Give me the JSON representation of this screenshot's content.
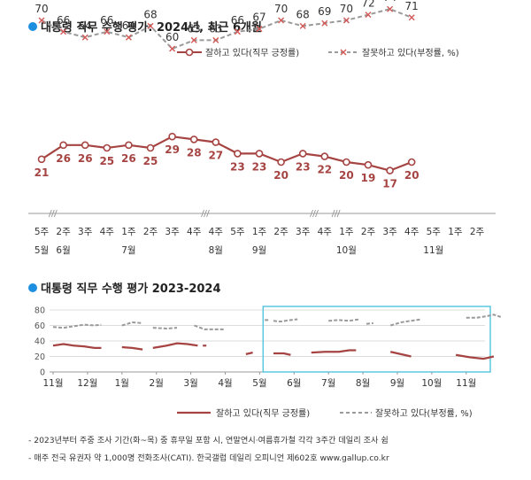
{
  "colors": {
    "approve": "#a54442",
    "disapprove": "#9a9a9a",
    "title_bullet": "#1d8fe0",
    "highlight_box": "#5bc8e0",
    "grid": "#dddddd",
    "axis": "#999999"
  },
  "chart_data": [
    {
      "type": "line",
      "title": "대통령 직무 수행 평가: 2024년, 최근 6개월",
      "legend": [
        "잘하고 있다(직무 긍정률)",
        "잘못하고 있다(부정률, %)"
      ],
      "legend_position": "top-right",
      "x_week_labels": [
        "5주",
        "2주",
        "3주",
        "4주",
        "1주",
        "2주",
        "3주",
        "4주",
        "4주",
        "5주",
        "1주",
        "2주",
        "3주",
        "4주",
        "1주",
        "2주",
        "3주",
        "4주",
        "5주",
        "1주",
        "2주"
      ],
      "x_month_labels": [
        {
          "index": 0,
          "label": "5월"
        },
        {
          "index": 1,
          "label": "6월"
        },
        {
          "index": 4,
          "label": "7월"
        },
        {
          "index": 8,
          "label": "8월"
        },
        {
          "index": 10,
          "label": "9월"
        },
        {
          "index": 14,
          "label": "10월"
        },
        {
          "index": 18,
          "label": "11월"
        }
      ],
      "breaks_after_index": [
        0,
        7,
        12,
        13
      ],
      "series": [
        {
          "name": "잘못하고 있다(부정률, %)",
          "style": "dashed",
          "marker": "x",
          "values": [
            70,
            66,
            64,
            66,
            64,
            68,
            60,
            63,
            63,
            66,
            67,
            70,
            68,
            69,
            70,
            72,
            74,
            71
          ]
        },
        {
          "name": "잘하고 있다(직무 긍정률)",
          "style": "solid",
          "marker": "circle",
          "values": [
            21,
            26,
            26,
            25,
            26,
            25,
            29,
            28,
            27,
            23,
            23,
            20,
            23,
            22,
            20,
            19,
            17,
            20
          ]
        }
      ],
      "series_x_index": [
        0,
        1,
        2,
        3,
        4,
        5,
        6,
        7,
        8,
        9,
        10,
        11,
        12,
        13,
        14,
        15,
        16,
        17
      ]
    },
    {
      "type": "line",
      "title": "대통령 직무 수행 평가 2023-2024",
      "ylim": [
        0,
        80
      ],
      "y_ticks": [
        "0",
        "20",
        "40",
        "60",
        "80"
      ],
      "x_labels": [
        "11월",
        "12월",
        "1월",
        "2월",
        "3월",
        "4월",
        "5월",
        "6월",
        "7월",
        "8월",
        "9월",
        "10월",
        "11월"
      ],
      "legend": [
        "잘하고 있다(직무 긍정률)",
        "잘못하고 있다(부정률, %)"
      ],
      "legend_position": "bottom",
      "disapprove_segments": [
        [
          [
            0,
            58
          ],
          [
            0.3,
            57
          ],
          [
            0.6,
            59
          ],
          [
            0.9,
            61
          ],
          [
            1.2,
            60
          ],
          [
            1.4,
            61
          ]
        ],
        [
          [
            2.0,
            60
          ],
          [
            2.3,
            64
          ],
          [
            2.6,
            63
          ]
        ],
        [
          [
            2.9,
            57
          ],
          [
            3.3,
            56
          ],
          [
            3.6,
            57
          ]
        ],
        [
          [
            4.1,
            60
          ],
          [
            4.4,
            55
          ],
          [
            4.7,
            55
          ],
          [
            5.0,
            55
          ]
        ],
        [
          [
            6.2,
            67
          ]
        ],
        [
          [
            6.4,
            66
          ],
          [
            6.6,
            65
          ],
          [
            6.9,
            67
          ],
          [
            7.1,
            68
          ]
        ],
        [
          [
            8.0,
            66
          ],
          [
            8.3,
            67
          ],
          [
            8.6,
            66
          ],
          [
            8.9,
            68
          ]
        ],
        [
          [
            9.1,
            62
          ],
          [
            9.3,
            63
          ]
        ],
        [
          [
            9.8,
            60
          ],
          [
            10.1,
            64
          ],
          [
            10.4,
            66
          ],
          [
            10.7,
            68
          ]
        ],
        [
          [
            12.0,
            70
          ],
          [
            12.3,
            70
          ],
          [
            12.6,
            72
          ],
          [
            12.8,
            74
          ],
          [
            13.0,
            71
          ]
        ]
      ],
      "approve_segments": [
        [
          [
            0,
            34
          ],
          [
            0.3,
            36
          ],
          [
            0.6,
            34
          ],
          [
            0.9,
            33
          ],
          [
            1.2,
            31
          ],
          [
            1.4,
            31
          ]
        ],
        [
          [
            2.0,
            32
          ],
          [
            2.3,
            31
          ],
          [
            2.6,
            29
          ]
        ],
        [
          [
            2.9,
            31
          ],
          [
            3.3,
            34
          ],
          [
            3.6,
            37
          ],
          [
            3.9,
            36
          ],
          [
            4.2,
            34
          ]
        ],
        [
          [
            4.4,
            34
          ]
        ],
        [
          [
            5.6,
            23
          ],
          [
            5.8,
            25
          ]
        ],
        [
          [
            6.4,
            24
          ],
          [
            6.7,
            24
          ],
          [
            6.9,
            22
          ]
        ],
        [
          [
            7.5,
            25
          ],
          [
            7.9,
            26
          ],
          [
            8.3,
            26
          ],
          [
            8.6,
            28
          ],
          [
            8.8,
            28
          ]
        ],
        [
          [
            9.8,
            26
          ],
          [
            10.1,
            23
          ],
          [
            10.4,
            20
          ]
        ],
        [
          [
            11.7,
            22
          ],
          [
            12.1,
            19
          ],
          [
            12.5,
            17
          ],
          [
            12.8,
            20
          ]
        ]
      ],
      "highlight_range_months": [
        6.1,
        12.7
      ]
    }
  ],
  "footnotes": [
    "- 2023년부터 주중 조사 기간(화~목) 중 휴무일 포함 시, 연말연시·여름휴가철 각각 3주간 데일리 조사 쉼",
    "- 매주 전국 유권자 약 1,000명 전화조사(CATI). 한국갤럽 데일리 오피니언 제602호 www.gallup.co.kr"
  ]
}
